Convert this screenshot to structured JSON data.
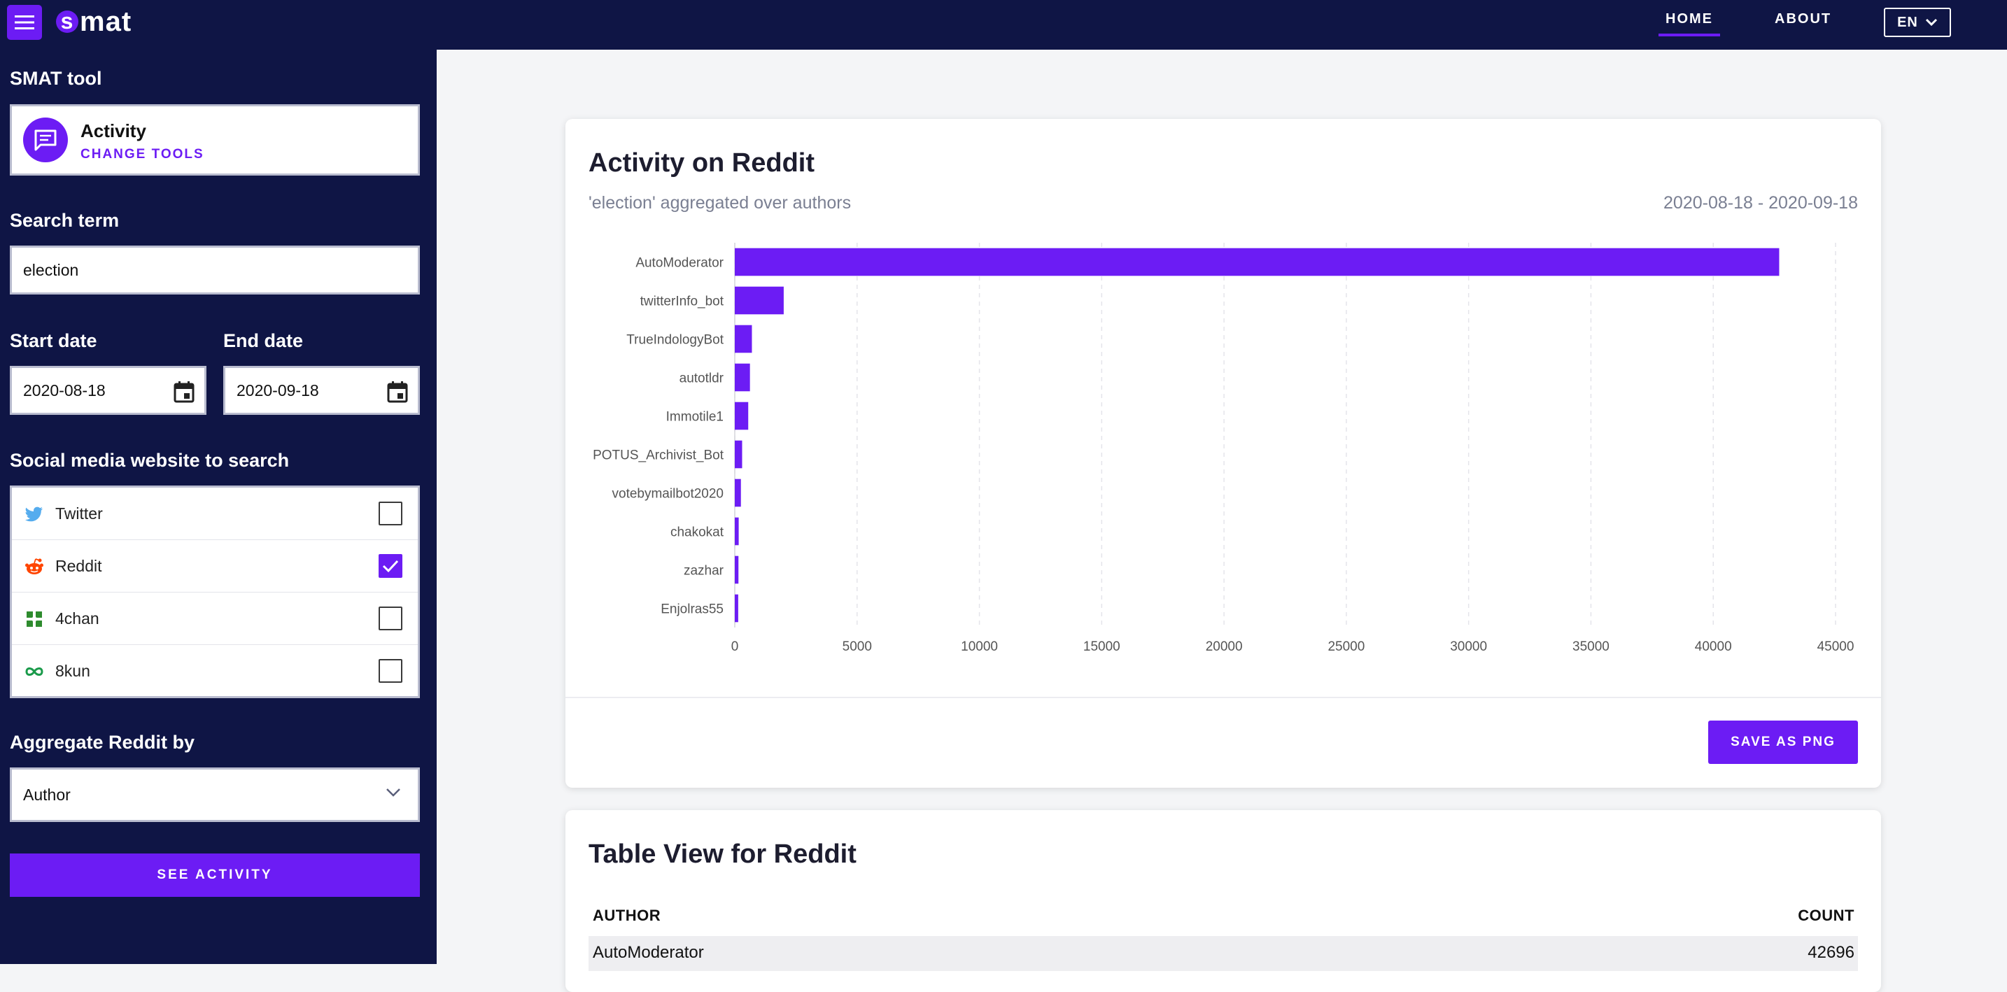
{
  "header": {
    "logo_text": "mat",
    "logo_s": "s",
    "nav": [
      {
        "label": "HOME",
        "active": true
      },
      {
        "label": "ABOUT",
        "active": false
      }
    ],
    "language": "EN"
  },
  "sidebar": {
    "tool_section_label": "SMAT tool",
    "tool": {
      "name": "Activity",
      "change_label": "CHANGE TOOLS",
      "icon": "chat-bubble-icon"
    },
    "search_label": "Search term",
    "search_value": "election",
    "start_date_label": "Start date",
    "start_date_value": "2020-08-18",
    "end_date_label": "End date",
    "end_date_value": "2020-09-18",
    "platform_label": "Social media website to search",
    "platforms": [
      {
        "name": "Twitter",
        "checked": false,
        "icon": "twitter-icon",
        "color": "#55acee"
      },
      {
        "name": "Reddit",
        "checked": true,
        "icon": "reddit-icon",
        "color": "#ff4500"
      },
      {
        "name": "4chan",
        "checked": false,
        "icon": "4chan-clover-icon",
        "color": "#2e8b2e"
      },
      {
        "name": "8kun",
        "checked": false,
        "icon": "8kun-infinity-icon",
        "color": "#1a9a4a"
      }
    ],
    "aggregate_label": "Aggregate Reddit by",
    "aggregate_value": "Author",
    "submit_label": "SEE ACTIVITY"
  },
  "chart_card": {
    "title": "Activity on Reddit",
    "subtitle": "'election' aggregated over authors",
    "date_range": "2020-08-18 - 2020-09-18",
    "save_label": "SAVE AS PNG"
  },
  "chart_data": {
    "type": "bar",
    "orientation": "horizontal",
    "categories": [
      "AutoModerator",
      "twitterInfo_bot",
      "TrueIndologyBot",
      "autotldr",
      "Immotile1",
      "POTUS_Archivist_Bot",
      "votebymailbot2020",
      "chakokat",
      "zazhar",
      "Enjolras55"
    ],
    "values": [
      42696,
      2000,
      700,
      620,
      550,
      300,
      250,
      160,
      150,
      140
    ],
    "xlim": [
      0,
      45000
    ],
    "xticks": [
      0,
      5000,
      10000,
      15000,
      20000,
      25000,
      30000,
      35000,
      40000,
      45000
    ],
    "grid": "vertical-dashed",
    "bar_color": "#6c1cf4"
  },
  "table_card": {
    "title": "Table View for Reddit",
    "columns": [
      "AUTHOR",
      "COUNT"
    ],
    "rows": [
      {
        "author": "AutoModerator",
        "count": "42696"
      }
    ]
  },
  "colors": {
    "accent": "#6c1cf4",
    "navy": "#0f1545",
    "page_bg": "#f4f5f7"
  }
}
